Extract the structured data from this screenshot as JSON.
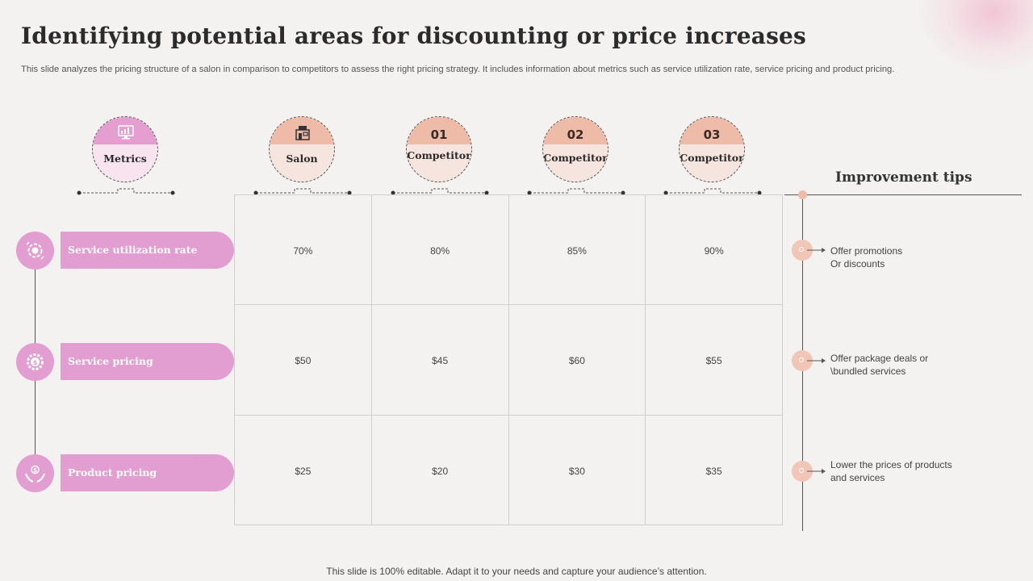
{
  "title": "Identifying potential areas for discounting or price increases",
  "subtitle": "This slide analyzes the pricing structure of a salon in comparison to competitors to assess the right pricing strategy. It includes information about metrics such as service utilization rate, service pricing and product pricing.",
  "footer": "This slide is 100% editable. Adapt it to your needs and capture your audience’s attention.",
  "columns": [
    {
      "number": "",
      "label": "Metrics",
      "icon": "monitor-chart-icon"
    },
    {
      "number": "",
      "label": "Salon",
      "icon": "salon-storefront-icon"
    },
    {
      "number": "01",
      "label": "Competitor"
    },
    {
      "number": "02",
      "label": "Competitor"
    },
    {
      "number": "03",
      "label": "Competitor"
    }
  ],
  "metrics": [
    {
      "label": "Service utilization rate",
      "icon": "gear-cycle-icon",
      "values": [
        "70%",
        "80%",
        "85%",
        "90%"
      ]
    },
    {
      "label": "Service pricing",
      "icon": "gear-dollar-icon",
      "values": [
        "$50",
        "$45",
        "$60",
        "$55"
      ]
    },
    {
      "label": "Product pricing",
      "icon": "hands-dollar-icon",
      "values": [
        "$25",
        "$20",
        "$30",
        "$35"
      ]
    }
  ],
  "improvement": {
    "title": "Improvement  tips",
    "tips": [
      "Offer  promotions\nOr discounts",
      "Offer  package deals or\n\\bundled services",
      "Lower the prices of products\nand services"
    ]
  },
  "colors": {
    "pink": "#e29ed1",
    "peach": "#efbba9",
    "background": "#f3f2f0"
  }
}
